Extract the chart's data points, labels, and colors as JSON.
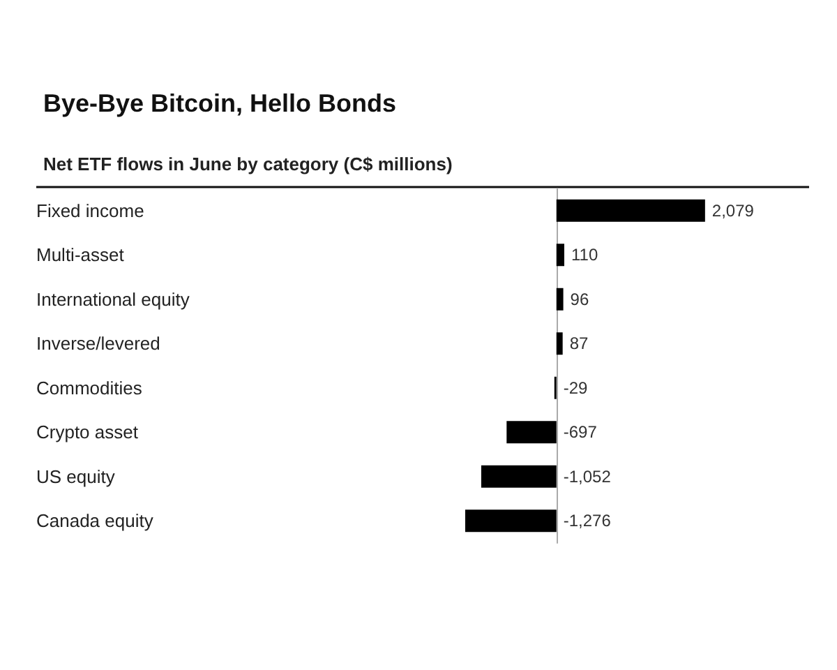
{
  "chart_data": {
    "type": "bar",
    "orientation": "horizontal",
    "title": "Bye-Bye Bitcoin, Hello Bonds",
    "subtitle": "Net ETF flows in June by category (C$ millions)",
    "categories": [
      "Fixed income",
      "Multi-asset",
      "International equity",
      "Inverse/levered",
      "Commodities",
      "Crypto asset",
      "US equity",
      "Canada equity"
    ],
    "values": [
      2079,
      110,
      96,
      87,
      -29,
      -697,
      -1052,
      -1276
    ],
    "value_labels": [
      "2,079",
      "110",
      "96",
      "87",
      "-29",
      "-697",
      "-1,052",
      "-1,276"
    ],
    "color": "#000000",
    "tick_labels": "y"
  }
}
